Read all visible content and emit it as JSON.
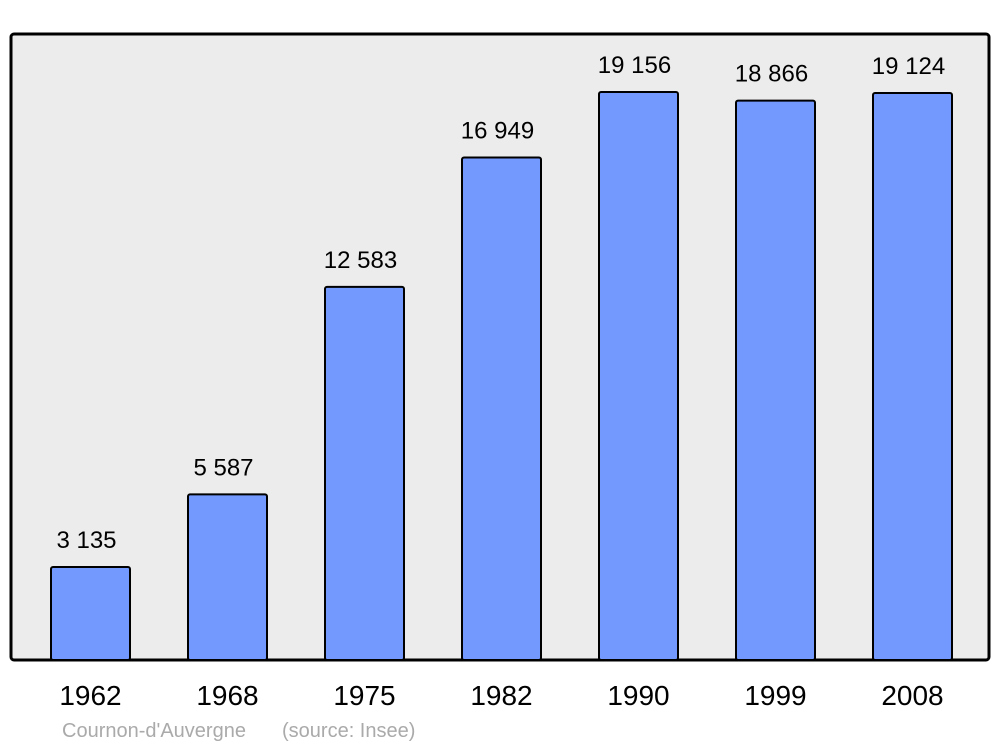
{
  "chart_data": {
    "type": "bar",
    "title": "Cournon-d'Auvergne",
    "source": "(source: Insee)",
    "categories": [
      "1962",
      "1968",
      "1975",
      "1982",
      "1990",
      "1999",
      "2008"
    ],
    "values": [
      3135,
      5587,
      12583,
      16949,
      19156,
      18866,
      19124
    ],
    "value_labels": [
      "3 135",
      "5 587",
      "12 583",
      "16 949",
      "19 156",
      "18 866",
      "19 124"
    ],
    "color": "#7399ff",
    "background": "#ececec"
  }
}
